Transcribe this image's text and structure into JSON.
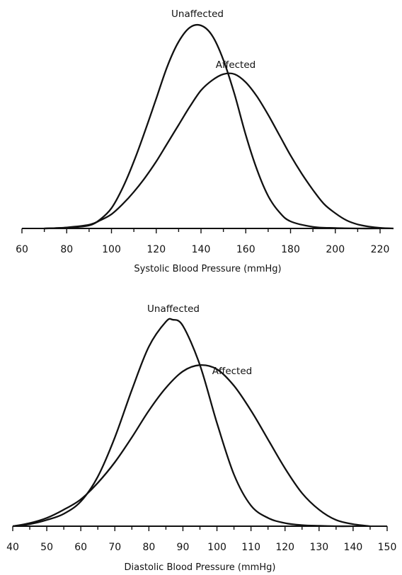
{
  "chart_data": [
    {
      "type": "line",
      "title": "",
      "xlabel": "Systolic Blood Pressure (mmHg)",
      "ylabel": "",
      "xlim": [
        60,
        226
      ],
      "xticks": [
        60,
        80,
        100,
        120,
        140,
        160,
        180,
        200,
        220
      ],
      "yaxis_shown": false,
      "grid": false,
      "series": [
        {
          "name": "Unaffected",
          "x": [
            70,
            80,
            90,
            95,
            100,
            105,
            110,
            115,
            120,
            125,
            130,
            135,
            140,
            145,
            150,
            155,
            160,
            165,
            170,
            175,
            180,
            190,
            200,
            210,
            220
          ],
          "y": [
            0,
            0.004,
            0.015,
            0.045,
            0.1,
            0.2,
            0.33,
            0.48,
            0.64,
            0.8,
            0.92,
            0.99,
            1.0,
            0.95,
            0.83,
            0.66,
            0.46,
            0.29,
            0.16,
            0.08,
            0.035,
            0.008,
            0.002,
            0,
            0
          ]
        },
        {
          "name": "Affected",
          "x": [
            70,
            80,
            90,
            95,
            100,
            105,
            110,
            115,
            120,
            125,
            130,
            135,
            140,
            145,
            150,
            155,
            160,
            165,
            170,
            175,
            180,
            185,
            190,
            195,
            200,
            205,
            210,
            215,
            220,
            226
          ],
          "y": [
            0,
            0.005,
            0.018,
            0.04,
            0.07,
            0.12,
            0.18,
            0.25,
            0.33,
            0.42,
            0.51,
            0.6,
            0.68,
            0.73,
            0.76,
            0.76,
            0.72,
            0.65,
            0.56,
            0.46,
            0.36,
            0.27,
            0.19,
            0.12,
            0.075,
            0.04,
            0.02,
            0.009,
            0.003,
            0
          ]
        }
      ],
      "annotations": [
        "Unaffected",
        "Affected"
      ]
    },
    {
      "type": "line",
      "title": "",
      "xlabel": "Diastolic Blood Pressure (mmHg)",
      "ylabel": "",
      "xlim": [
        40,
        150
      ],
      "xticks": [
        40,
        50,
        60,
        70,
        80,
        90,
        100,
        110,
        120,
        130,
        140,
        150
      ],
      "yaxis_shown": false,
      "grid": false,
      "series": [
        {
          "name": "Unaffected",
          "x": [
            40,
            45,
            50,
            55,
            60,
            65,
            70,
            75,
            80,
            85,
            87,
            90,
            95,
            100,
            105,
            110,
            115,
            120,
            125,
            130,
            135,
            140
          ],
          "y": [
            0,
            0.01,
            0.03,
            0.06,
            0.12,
            0.24,
            0.43,
            0.66,
            0.87,
            0.99,
            1.0,
            0.97,
            0.78,
            0.5,
            0.25,
            0.1,
            0.04,
            0.015,
            0.005,
            0.002,
            0,
            0
          ]
        },
        {
          "name": "Affected",
          "x": [
            40,
            45,
            50,
            55,
            60,
            65,
            70,
            75,
            80,
            85,
            90,
            95,
            100,
            105,
            110,
            115,
            120,
            125,
            130,
            135,
            140,
            145
          ],
          "y": [
            0,
            0.015,
            0.04,
            0.08,
            0.13,
            0.21,
            0.31,
            0.43,
            0.56,
            0.67,
            0.75,
            0.78,
            0.76,
            0.68,
            0.56,
            0.42,
            0.28,
            0.16,
            0.08,
            0.03,
            0.01,
            0
          ]
        }
      ],
      "annotations": [
        "Unaffected",
        "Affected"
      ]
    }
  ]
}
